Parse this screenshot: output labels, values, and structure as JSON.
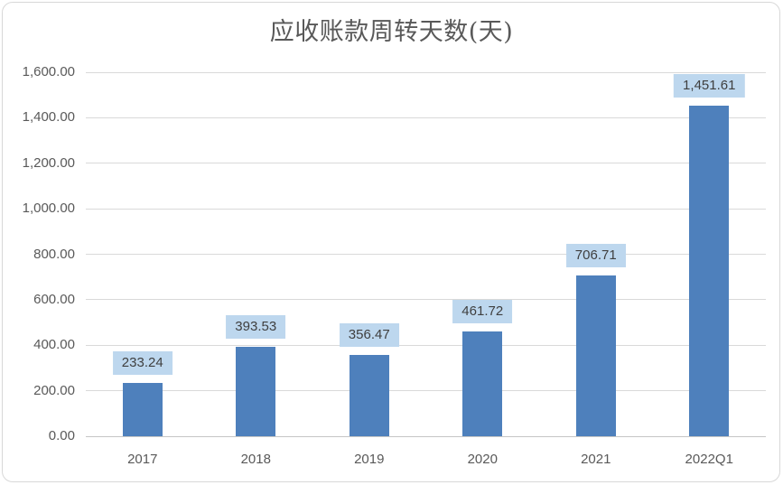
{
  "chart_data": {
    "type": "bar",
    "title": "应收账款周转天数(天)",
    "categories": [
      "2017",
      "2018",
      "2019",
      "2020",
      "2021",
      "2022Q1"
    ],
    "values": [
      233.24,
      393.53,
      356.47,
      461.72,
      706.71,
      1451.61
    ],
    "value_labels": [
      "233.24",
      "393.53",
      "356.47",
      "461.72",
      "706.71",
      "1,451.61"
    ],
    "xlabel": "",
    "ylabel": "",
    "ylim": [
      0,
      1600
    ],
    "ytick_interval": 200,
    "ytick_labels": [
      "0.00",
      "200.00",
      "400.00",
      "600.00",
      "800.00",
      "1,000.00",
      "1,200.00",
      "1,400.00",
      "1,600.00"
    ],
    "grid": "horizontal",
    "legend": "none",
    "data_labels": "above bars, boxed",
    "colors": {
      "bar": "#4E80BC",
      "data_label_bg": "#BDD7EE",
      "data_label_text": "#3F3F3F",
      "axis_text": "#595959",
      "gridline": "#D9D9D9",
      "axis_line": "#C6C6C6",
      "title_text": "#595959",
      "frame_border": "#D8D8D8",
      "background": "#FFFFFF"
    }
  }
}
